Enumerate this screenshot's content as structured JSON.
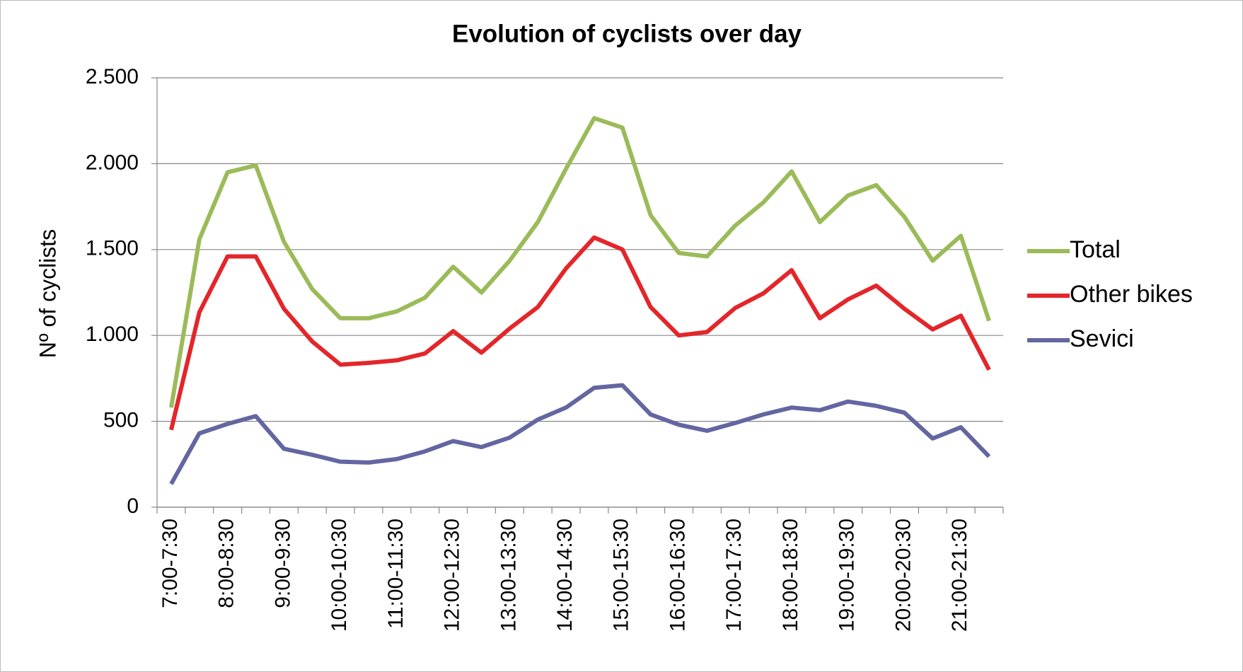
{
  "chart_data": {
    "type": "line",
    "title": "Evolution of cyclists over day",
    "y_label": "Nº of cyclists",
    "categories": [
      "7:00-7:30",
      null,
      "8:00-8:30",
      null,
      "9:00-9:30",
      null,
      "10:00-10:30",
      null,
      "11:00-11:30",
      null,
      "12:00-12:30",
      null,
      "13:00-13:30",
      null,
      "14:00-14:30",
      null,
      "15:00-15:30",
      null,
      "16:00-16:30",
      null,
      "17:00-17:30",
      null,
      "18:00-18:30",
      null,
      "19:00-19:30",
      null,
      "20:00-20:30",
      null,
      "21:00-21:30",
      null
    ],
    "series": [
      {
        "name": "Total",
        "color": "#9bbb59",
        "values": [
          580,
          1560,
          1950,
          1990,
          1545,
          1270,
          1100,
          1100,
          1140,
          1220,
          1400,
          1250,
          1435,
          1660,
          1970,
          2265,
          2210,
          1700,
          1480,
          1460,
          1640,
          1775,
          1955,
          1660,
          1815,
          1875,
          1690,
          1435,
          1580,
          1085
        ]
      },
      {
        "name": "Other bikes",
        "color": "#e3262a",
        "values": [
          450,
          1135,
          1460,
          1460,
          1155,
          965,
          830,
          840,
          855,
          895,
          1025,
          900,
          1040,
          1165,
          1390,
          1570,
          1500,
          1165,
          1000,
          1020,
          1160,
          1245,
          1380,
          1100,
          1210,
          1290,
          1155,
          1035,
          1115,
          800
        ]
      },
      {
        "name": "Sevici",
        "color": "#6366a0",
        "values": [
          135,
          430,
          485,
          530,
          340,
          305,
          265,
          260,
          280,
          325,
          385,
          350,
          405,
          510,
          580,
          695,
          710,
          540,
          480,
          445,
          490,
          540,
          580,
          565,
          615,
          590,
          550,
          400,
          465,
          295
        ]
      }
    ],
    "ylim": [
      0,
      2500
    ],
    "yticks": [
      0,
      500,
      {
        "value": 1000,
        "label": "1.000"
      },
      {
        "value": 1500,
        "label": "1.500"
      },
      {
        "value": 2000,
        "label": "2.000"
      },
      {
        "value": 2500,
        "label": "2.500"
      }
    ],
    "grid": true,
    "legend": "right"
  }
}
